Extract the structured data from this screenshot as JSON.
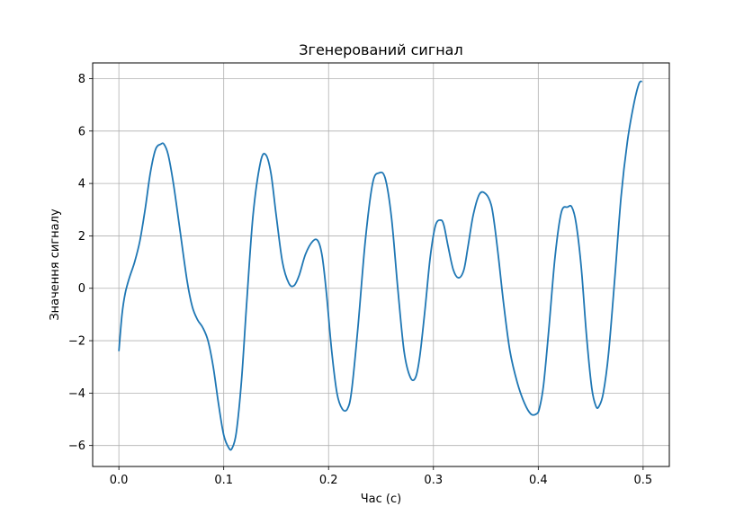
{
  "chart_data": {
    "type": "line",
    "title": "Згенерований сигнал",
    "xlabel": "Час (с)",
    "ylabel": "Значення сигналу",
    "xlim": [
      -0.025,
      0.525
    ],
    "ylim": [
      -6.8,
      8.6
    ],
    "xticks": [
      0.0,
      0.1,
      0.2,
      0.3,
      0.4,
      0.5
    ],
    "xtick_labels": [
      "0.0",
      "0.1",
      "0.2",
      "0.3",
      "0.4",
      "0.5"
    ],
    "yticks": [
      -6,
      -4,
      -2,
      0,
      2,
      4,
      6,
      8
    ],
    "ytick_labels": [
      "−6",
      "−4",
      "−2",
      "0",
      "2",
      "4",
      "6",
      "8"
    ],
    "grid": true,
    "line_color": "#1f77b4",
    "series": [
      {
        "x": [
          0.0,
          0.003,
          0.006,
          0.01,
          0.015,
          0.02,
          0.025,
          0.03,
          0.035,
          0.04,
          0.043,
          0.047,
          0.052,
          0.058,
          0.065,
          0.07,
          0.075,
          0.08,
          0.085,
          0.09,
          0.095,
          0.1,
          0.105,
          0.108,
          0.112,
          0.117,
          0.122,
          0.128,
          0.135,
          0.14,
          0.145,
          0.15,
          0.156,
          0.162,
          0.167,
          0.172,
          0.178,
          0.185,
          0.19,
          0.194,
          0.198,
          0.203,
          0.208,
          0.213,
          0.218,
          0.222,
          0.228,
          0.235,
          0.242,
          0.248,
          0.254,
          0.26,
          0.266,
          0.272,
          0.278,
          0.283,
          0.287,
          0.292,
          0.297,
          0.302,
          0.307,
          0.31,
          0.314,
          0.319,
          0.324,
          0.329,
          0.333,
          0.338,
          0.344,
          0.35,
          0.355,
          0.358,
          0.362,
          0.367,
          0.373,
          0.38,
          0.387,
          0.393,
          0.398,
          0.401,
          0.405,
          0.41,
          0.416,
          0.422,
          0.428,
          0.432,
          0.436,
          0.441,
          0.446,
          0.451,
          0.455,
          0.458,
          0.462,
          0.467,
          0.473,
          0.479,
          0.485,
          0.491,
          0.496,
          0.499
        ],
        "y": [
          -2.4,
          -1.0,
          -0.2,
          0.4,
          1.0,
          1.8,
          3.0,
          4.4,
          5.3,
          5.5,
          5.5,
          5.1,
          4.0,
          2.3,
          0.3,
          -0.7,
          -1.2,
          -1.5,
          -2.0,
          -3.0,
          -4.4,
          -5.6,
          -6.1,
          -6.1,
          -5.5,
          -3.5,
          -0.5,
          2.8,
          4.8,
          5.1,
          4.4,
          2.8,
          1.0,
          0.2,
          0.1,
          0.5,
          1.3,
          1.8,
          1.8,
          1.2,
          -0.2,
          -2.4,
          -4.0,
          -4.6,
          -4.6,
          -3.9,
          -1.5,
          1.8,
          4.0,
          4.4,
          4.2,
          2.7,
          0.0,
          -2.4,
          -3.4,
          -3.4,
          -2.6,
          -0.8,
          1.2,
          2.4,
          2.6,
          2.4,
          1.6,
          0.7,
          0.4,
          0.7,
          1.6,
          2.8,
          3.6,
          3.6,
          3.2,
          2.5,
          1.2,
          -0.6,
          -2.4,
          -3.6,
          -4.4,
          -4.8,
          -4.8,
          -4.6,
          -3.7,
          -1.6,
          1.2,
          2.9,
          3.1,
          3.1,
          2.5,
          0.8,
          -1.8,
          -3.8,
          -4.5,
          -4.5,
          -4.0,
          -2.5,
          0.4,
          3.5,
          5.6,
          7.0,
          7.8,
          7.9
        ]
      }
    ]
  }
}
